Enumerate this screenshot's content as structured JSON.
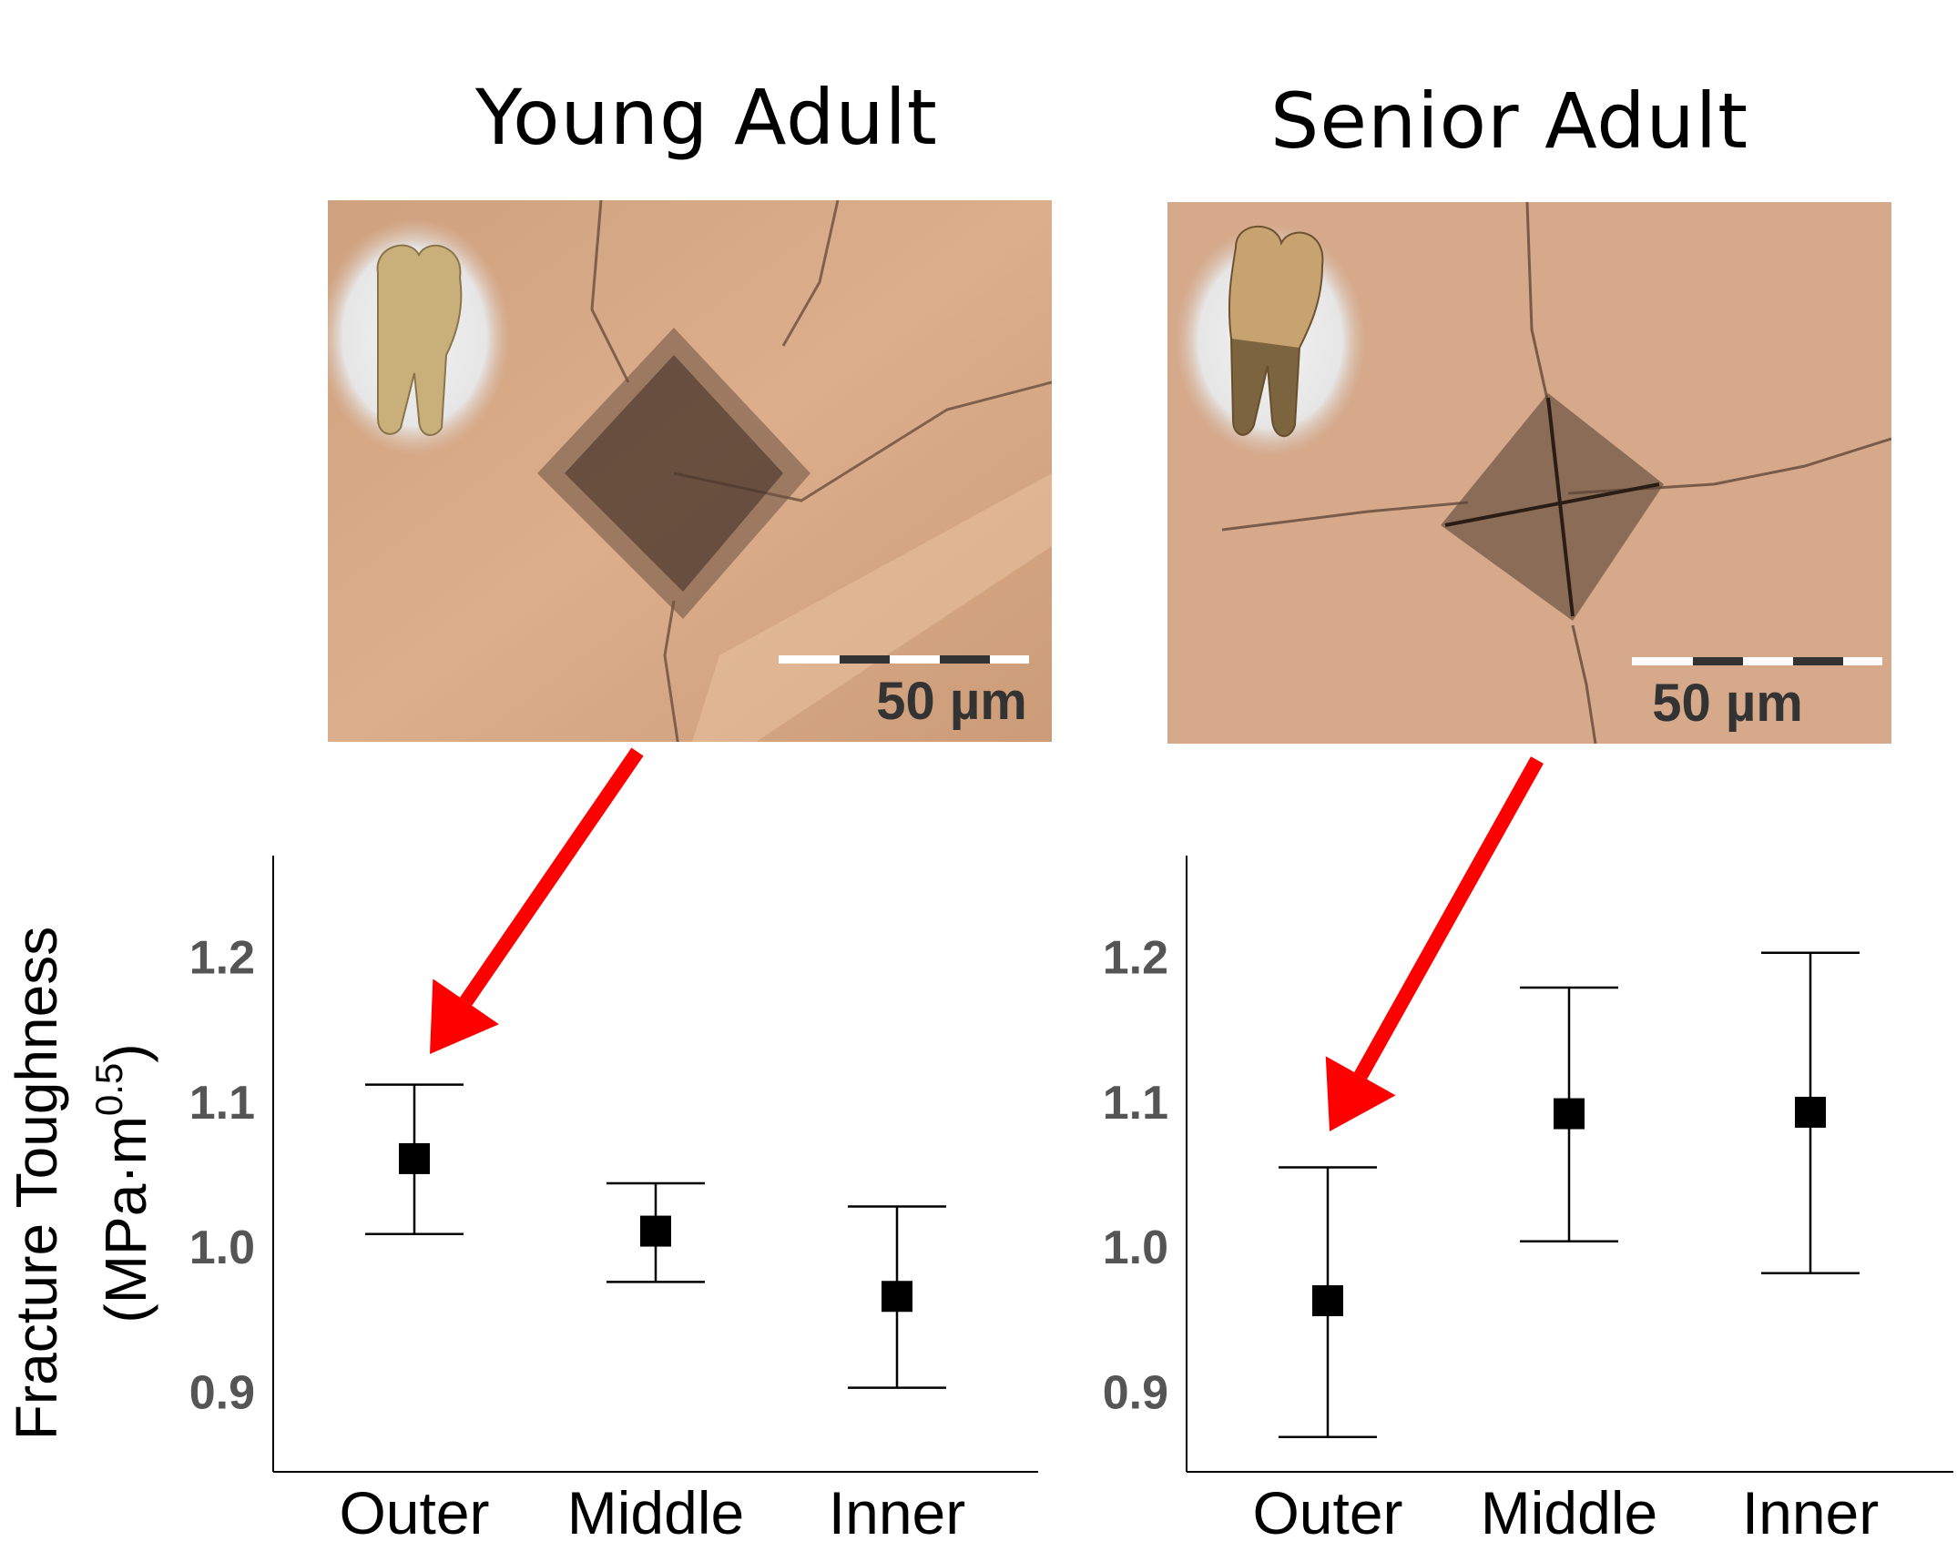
{
  "panels": {
    "left": {
      "title": "Young Adult",
      "scale_bar_label": "50 µm",
      "inset_icon": "molar-tooth-photo",
      "indent_icon": "vickers-indent-micrograph"
    },
    "right": {
      "title": "Senior Adult",
      "scale_bar_label": "50 µm",
      "inset_icon": "molar-tooth-photo",
      "indent_icon": "vickers-indent-micrograph"
    }
  },
  "colors": {
    "arrow": "#ff0000",
    "marker": "#000000",
    "tick_label": "#555555",
    "micrograph": "#d4a888"
  },
  "chart_data": [
    {
      "type": "scatter",
      "panel": "Young Adult",
      "categories": [
        "Outer",
        "Middle",
        "Inner"
      ],
      "values": [
        1.061,
        1.011,
        0.966
      ],
      "error_low": [
        1.009,
        0.976,
        0.903
      ],
      "error_high": [
        1.112,
        1.044,
        1.028
      ],
      "ylabel": "Fracture Toughness",
      "ylabel_units": {
        "base": "(MPa·m",
        "sup": "0.5",
        "close": ")"
      },
      "yticks": [
        "1.2",
        "1.1",
        "1.0",
        "0.9"
      ],
      "ylim": [
        0.845,
        1.27
      ],
      "grid": false
    },
    {
      "type": "scatter",
      "panel": "Senior Adult",
      "categories": [
        "Outer",
        "Middle",
        "Inner"
      ],
      "values": [
        0.963,
        1.092,
        1.093
      ],
      "error_low": [
        0.869,
        1.004,
        0.982
      ],
      "error_high": [
        1.055,
        1.179,
        1.203
      ],
      "yticks": [
        "1.2",
        "1.1",
        "1.0",
        "0.9"
      ],
      "ylim": [
        0.845,
        1.27
      ],
      "grid": false
    }
  ]
}
